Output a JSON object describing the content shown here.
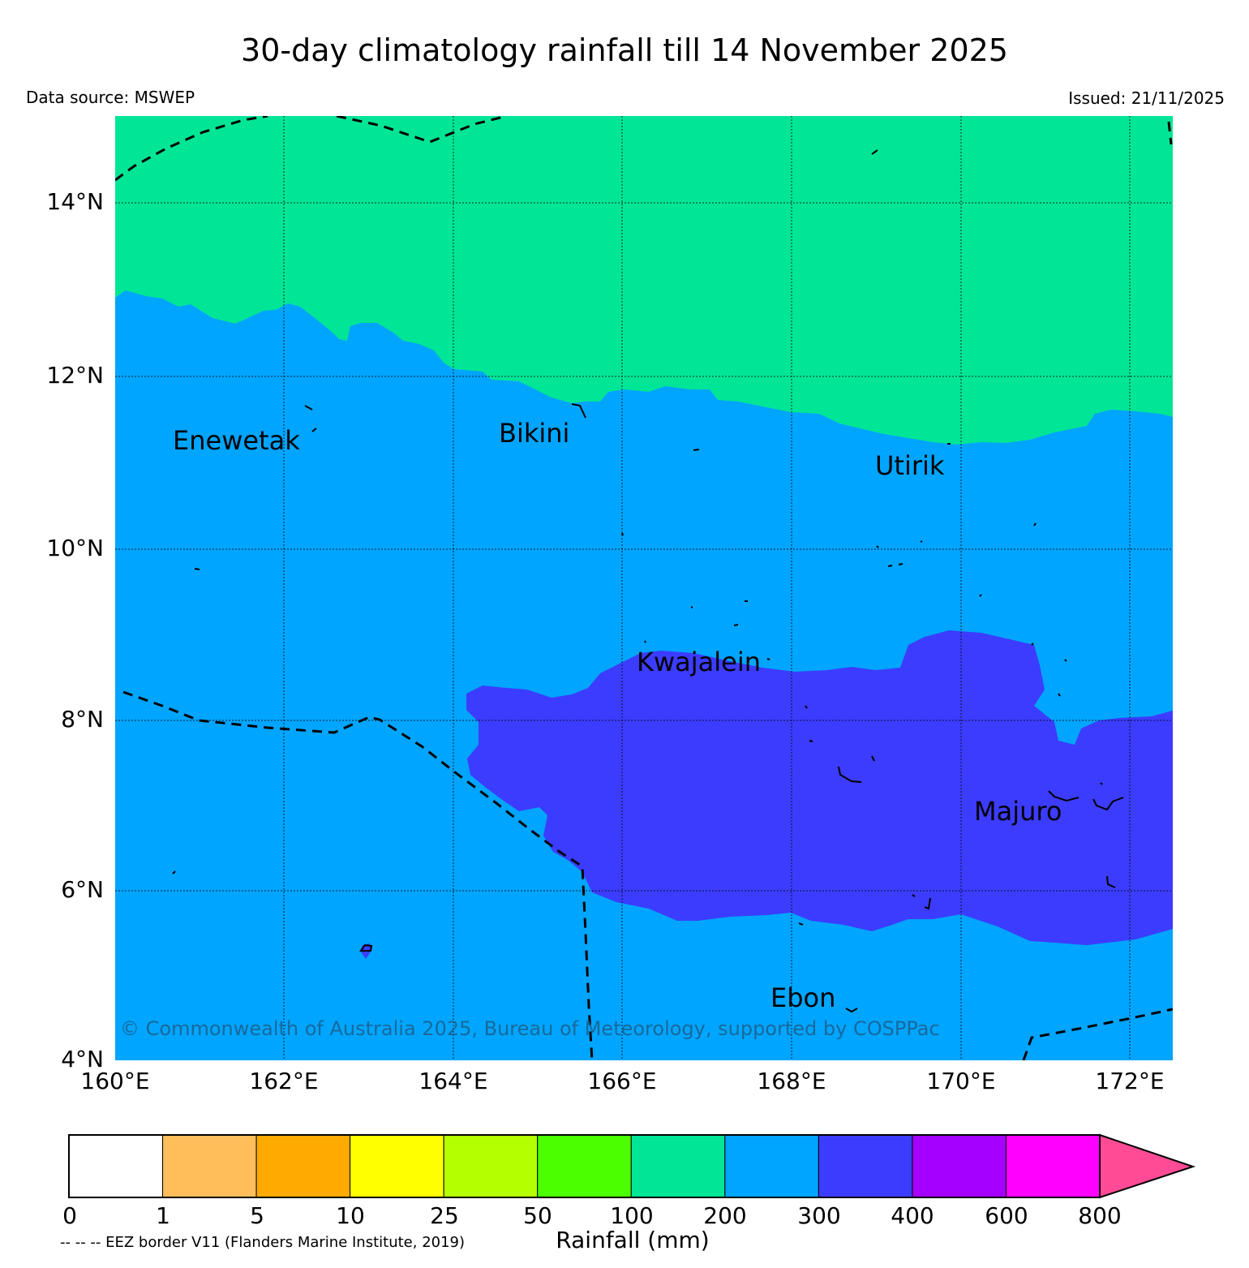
{
  "header": {
    "title": "30-day climatology rainfall till 14 November 2025",
    "source": "Data source: MSWEP",
    "issued": "Issued: 21/11/2025"
  },
  "map": {
    "lat_labels": [
      "14°N",
      "12°N",
      "10°N",
      "8°N",
      "6°N",
      "4°N"
    ],
    "lon_labels": [
      "160°E",
      "162°E",
      "164°E",
      "166°E",
      "168°E",
      "170°E",
      "172°E"
    ],
    "places": [
      "Enewetak",
      "Bikini",
      "Utirik",
      "Kwajalein",
      "Majuro",
      "Ebon"
    ],
    "copyright": "© Commonwealth of Australia 2025, Bureau of Meteorology, supported by COSPPac",
    "zone_colors": {
      "100-200": "#00e696",
      "200-300": "#00a5ff",
      "300-400": "#3c3cff"
    }
  },
  "legend": {
    "bins": [
      "#ffffff",
      "#ffbe5a",
      "#ffaa00",
      "#ffff00",
      "#b4ff00",
      "#4bff00",
      "#00e696",
      "#00a5ff",
      "#3c3cff",
      "#a500ff",
      "#ff00ff"
    ],
    "arrow_color": "#ff4b96",
    "ticks": [
      "0",
      "1",
      "5",
      "10",
      "25",
      "50",
      "100",
      "200",
      "300",
      "400",
      "600",
      "800"
    ],
    "title": "Rainfall (mm)",
    "eez_note": "-- -- -- EEZ border V11 (Flanders Marine Institute, 2019)"
  }
}
